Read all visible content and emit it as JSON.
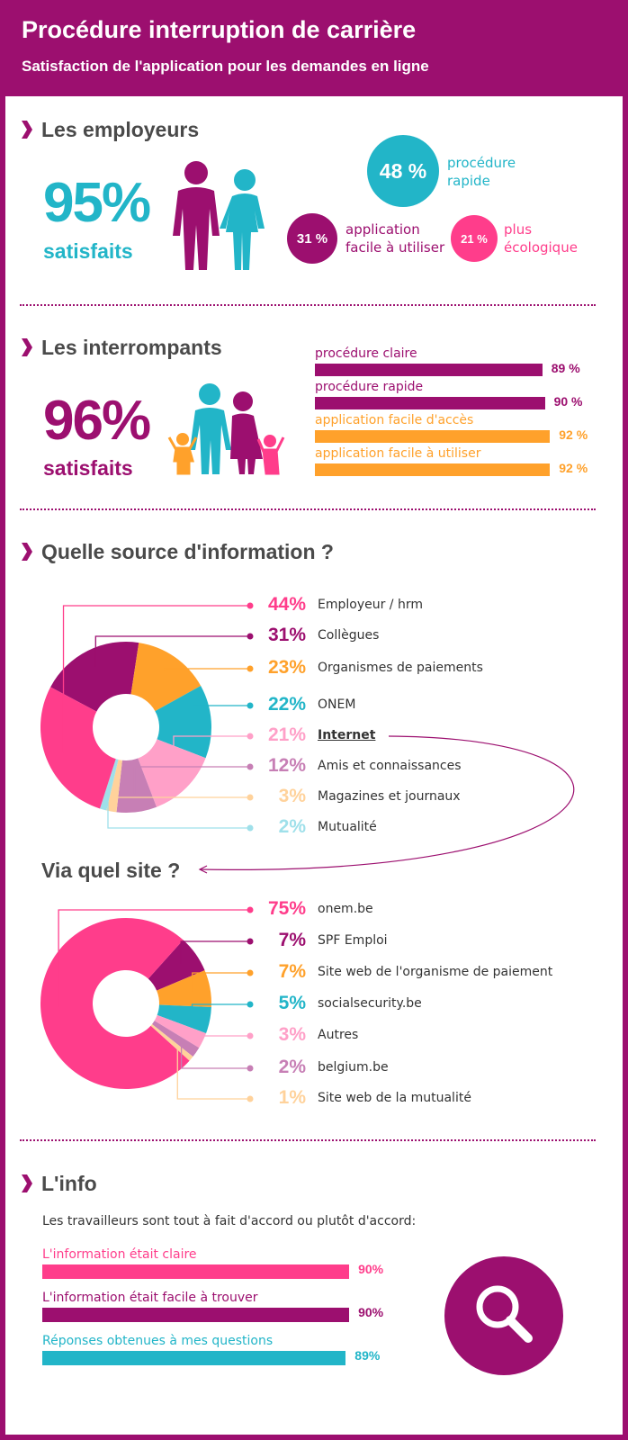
{
  "header": {
    "title": "Procédure interruption de carrière",
    "subtitle": "Satisfaction de l'application pour les demandes en ligne"
  },
  "employeurs": {
    "heading": "Les employeurs",
    "rate": "95%",
    "rate_label": "satisfaits",
    "stats": [
      {
        "value": "48 %",
        "label": "procédure rapide"
      },
      {
        "value": "31 %",
        "label": "application facile à utiliser"
      },
      {
        "value": "21 %",
        "label": "plus écologique"
      }
    ]
  },
  "interrompants": {
    "heading": "Les interrompants",
    "rate": "96%",
    "rate_label": "satisfaits",
    "bars": [
      {
        "label": "procédure claire",
        "value": 89,
        "value_label": "89 %"
      },
      {
        "label": "procédure rapide",
        "value": 90,
        "value_label": "90 %"
      },
      {
        "label": "application facile d'accès",
        "value": 92,
        "value_label": "92 %"
      },
      {
        "label": "application facile à utiliser",
        "value": 92,
        "value_label": "92 %"
      }
    ]
  },
  "sources": {
    "heading": "Quelle source d'information ?",
    "items": [
      {
        "value": 44,
        "value_label": "44%",
        "label": "Employeur / hrm"
      },
      {
        "value": 31,
        "value_label": "31%",
        "label": "Collègues"
      },
      {
        "value": 23,
        "value_label": "23%",
        "label": "Organismes de paiements"
      },
      {
        "value": 22,
        "value_label": "22%",
        "label": "ONEM"
      },
      {
        "value": 21,
        "value_label": "21%",
        "label": "Internet"
      },
      {
        "value": 12,
        "value_label": "12%",
        "label": "Amis et connaissances"
      },
      {
        "value": 3,
        "value_label": "3%",
        "label": "Magazines et journaux"
      },
      {
        "value": 2,
        "value_label": "2%",
        "label": "Mutualité"
      }
    ]
  },
  "sites": {
    "heading": "Via quel site ?",
    "items": [
      {
        "value": 75,
        "value_label": "75%",
        "label": "onem.be"
      },
      {
        "value": 7,
        "value_label": "7%",
        "label": "SPF Emploi"
      },
      {
        "value": 7,
        "value_label": "7%",
        "label": "Site web de l'organisme de paiement"
      },
      {
        "value": 5,
        "value_label": "5%",
        "label": "socialsecurity.be"
      },
      {
        "value": 3,
        "value_label": "3%",
        "label": "Autres"
      },
      {
        "value": 2,
        "value_label": "2%",
        "label": "belgium.be"
      },
      {
        "value": 1,
        "value_label": "1%",
        "label": "Site web de la mutualité"
      }
    ]
  },
  "info": {
    "heading": "L'info",
    "intro": "Les travailleurs sont tout à fait d'accord ou plutôt d'accord:",
    "bars": [
      {
        "label": "L'information était claire",
        "value": 90,
        "value_label": "90%"
      },
      {
        "label": "L'information était facile à trouver",
        "value": 90,
        "value_label": "90%"
      },
      {
        "label": "Réponses obtenues à mes questions",
        "value": 89,
        "value_label": "89%"
      }
    ]
  }
}
